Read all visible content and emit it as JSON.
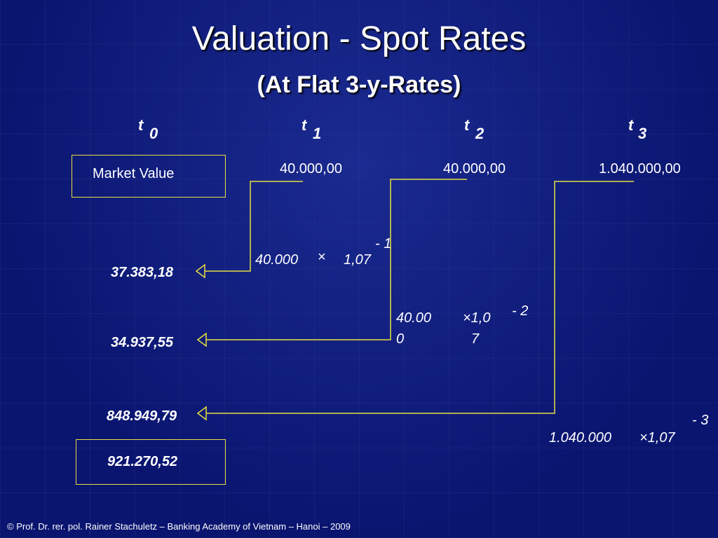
{
  "title": "Valuation - Spot Rates",
  "subtitle": "(At Flat 3-y-Rates)",
  "periods": [
    {
      "t": "t",
      "sub": "0"
    },
    {
      "t": "t",
      "sub": "1"
    },
    {
      "t": "t",
      "sub": "2"
    },
    {
      "t": "t",
      "sub": "3"
    }
  ],
  "market_value_label": "Market Value",
  "cash_flows": [
    "40.000,00",
    "40.000,00",
    "1.040.000,00"
  ],
  "present_values": [
    "37.383,18",
    "34.937,55",
    "848.949,79"
  ],
  "total": "921.270,52",
  "formulas": [
    {
      "amount": "40.000",
      "times": "×",
      "rate": "1,07",
      "exponent": "- 1"
    },
    {
      "amount_line1": "40.00",
      "amount_line2": "0",
      "times_rate_line1": "×1,0",
      "rate_line2": "7",
      "exponent": "- 2"
    },
    {
      "amount": "1.040.000",
      "times_rate": "×1,07",
      "exponent": "- 3"
    }
  ],
  "footer": "©   Prof. Dr. rer. pol. Rainer Stachuletz – Banking Academy of Vietnam – Hanoi –  2009",
  "colors": {
    "background": "#0a1570",
    "line": "#e8e040",
    "text": "#ffffff"
  }
}
